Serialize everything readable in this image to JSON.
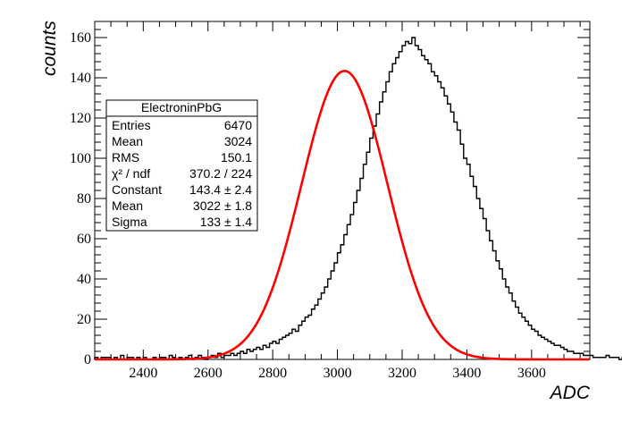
{
  "chart_data": {
    "type": "histogram",
    "xlabel": "ADC",
    "ylabel": "counts",
    "xlim": [
      2250,
      3780
    ],
    "ylim": [
      0,
      168
    ],
    "x_ticks": [
      "2400",
      "2600",
      "2800",
      "3000",
      "3200",
      "3400",
      "3600"
    ],
    "y_ticks": [
      "0",
      "20",
      "40",
      "60",
      "80",
      "100",
      "120",
      "140",
      "160"
    ],
    "grid": false,
    "histogram": {
      "bin_width": 10,
      "x_start": 2250,
      "counts": [
        1,
        0,
        1,
        1,
        1,
        0,
        1,
        0,
        2,
        0,
        1,
        1,
        0,
        1,
        0,
        1,
        0,
        0,
        1,
        0,
        1,
        1,
        0,
        2,
        1,
        0,
        1,
        0,
        1,
        2,
        0,
        1,
        2,
        1,
        0,
        1,
        2,
        1,
        3,
        1,
        2,
        2,
        3,
        2,
        3,
        4,
        3,
        5,
        4,
        5,
        6,
        5,
        7,
        6,
        8,
        9,
        8,
        10,
        11,
        12,
        13,
        15,
        14,
        17,
        19,
        21,
        22,
        25,
        27,
        30,
        33,
        36,
        40,
        44,
        48,
        53,
        57,
        62,
        67,
        72,
        78,
        84,
        90,
        97,
        103,
        110,
        116,
        122,
        128,
        133,
        138,
        143,
        147,
        150,
        153,
        156,
        158,
        157,
        160,
        156,
        154,
        151,
        149,
        147,
        143,
        141,
        138,
        135,
        131,
        127,
        123,
        118,
        114,
        107,
        100,
        97,
        91,
        86,
        80,
        75,
        70,
        64,
        59,
        54,
        49,
        45,
        40,
        36,
        33,
        29,
        26,
        23,
        21,
        19,
        17,
        15,
        14,
        12,
        11,
        10,
        9,
        8,
        7,
        7,
        6,
        5,
        4,
        4,
        3,
        3,
        3,
        2,
        2,
        2,
        1,
        1,
        1,
        1,
        2,
        1,
        1,
        1,
        0,
        1,
        1,
        0,
        1,
        0,
        1,
        0,
        0,
        1,
        0,
        1,
        0,
        0,
        1,
        0,
        0,
        1,
        0,
        0,
        1,
        0,
        0,
        0,
        0,
        1,
        0,
        0,
        0,
        0,
        0,
        0
      ]
    },
    "fit": {
      "type": "gaussian",
      "constant": 143.4,
      "mean": 3022,
      "sigma": 133,
      "color": "#ff0000"
    },
    "hist_color": "#000000"
  },
  "stats_box": {
    "title": "ElectroninPbG",
    "rows": [
      {
        "label": "Entries",
        "value": "6470"
      },
      {
        "label": "Mean",
        "value": "3024"
      },
      {
        "label": "RMS",
        "value": "150.1"
      },
      {
        "label": "χ² / ndf",
        "value": "370.2 / 224"
      },
      {
        "label": "Constant",
        "value": "143.4 ± 2.4"
      },
      {
        "label": "Mean",
        "value": "3022 ± 1.8"
      },
      {
        "label": "Sigma",
        "value": "133 ± 1.4"
      }
    ]
  }
}
